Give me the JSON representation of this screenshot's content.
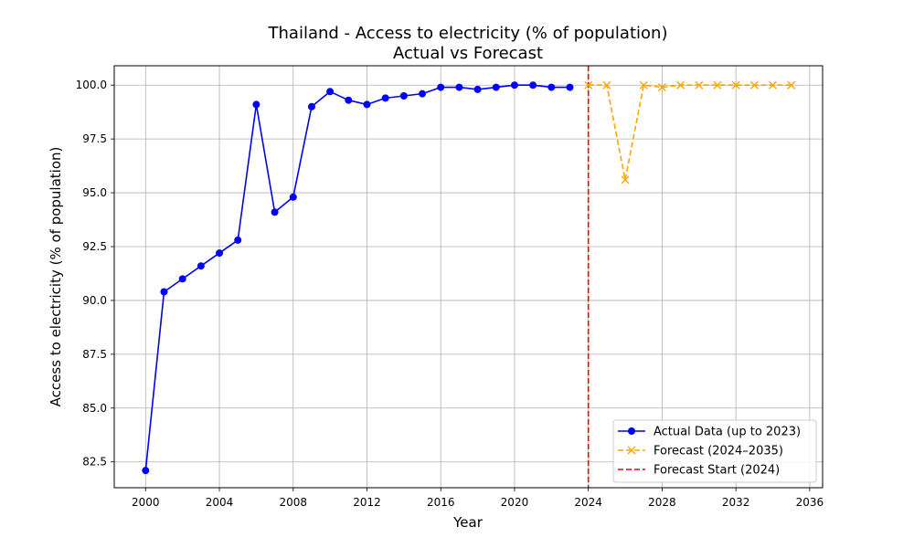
{
  "chart_data": {
    "type": "line",
    "title": "Thailand - Access to electricity (% of population)",
    "subtitle": "Actual vs Forecast",
    "xlabel": "Year",
    "ylabel": "Access to electricity (% of population)",
    "xlim": [
      1998.3,
      2036.7
    ],
    "ylim": [
      81.3,
      100.9
    ],
    "xticks": [
      2000,
      2004,
      2008,
      2012,
      2016,
      2020,
      2024,
      2028,
      2032,
      2036
    ],
    "yticks": [
      82.5,
      85.0,
      87.5,
      90.0,
      92.5,
      95.0,
      97.5,
      100.0
    ],
    "ytick_labels": [
      "82.5",
      "85.0",
      "87.5",
      "90.0",
      "92.5",
      "95.0",
      "97.5",
      "100.0"
    ],
    "grid": true,
    "legend_position": "lower-right",
    "series": [
      {
        "name": "Actual Data (up to 2023)",
        "color": "#0000ff",
        "marker": "circle",
        "line_style": "solid",
        "x": [
          2000,
          2001,
          2002,
          2003,
          2004,
          2005,
          2006,
          2007,
          2008,
          2009,
          2010,
          2011,
          2012,
          2013,
          2014,
          2015,
          2016,
          2017,
          2018,
          2019,
          2020,
          2021,
          2022,
          2023
        ],
        "y": [
          82.1,
          90.4,
          91.0,
          91.6,
          92.2,
          92.8,
          99.1,
          94.1,
          94.8,
          99.0,
          99.7,
          99.3,
          99.1,
          99.4,
          99.5,
          99.6,
          99.9,
          99.9,
          99.8,
          99.9,
          100.0,
          100.0,
          99.9,
          99.9
        ]
      },
      {
        "name": "Forecast (2024–2035)",
        "color": "#ffa500",
        "marker": "x",
        "line_style": "dashed",
        "x": [
          2024,
          2025,
          2026,
          2027,
          2028,
          2029,
          2030,
          2031,
          2032,
          2033,
          2034,
          2035
        ],
        "y": [
          100.0,
          100.0,
          95.6,
          100.0,
          99.9,
          100.0,
          100.0,
          100.0,
          100.0,
          100.0,
          100.0,
          100.0
        ]
      }
    ],
    "reference_lines": [
      {
        "name": "Forecast Start (2024)",
        "x": 2024,
        "color": "#ff0000",
        "line_style": "dashed"
      }
    ]
  }
}
